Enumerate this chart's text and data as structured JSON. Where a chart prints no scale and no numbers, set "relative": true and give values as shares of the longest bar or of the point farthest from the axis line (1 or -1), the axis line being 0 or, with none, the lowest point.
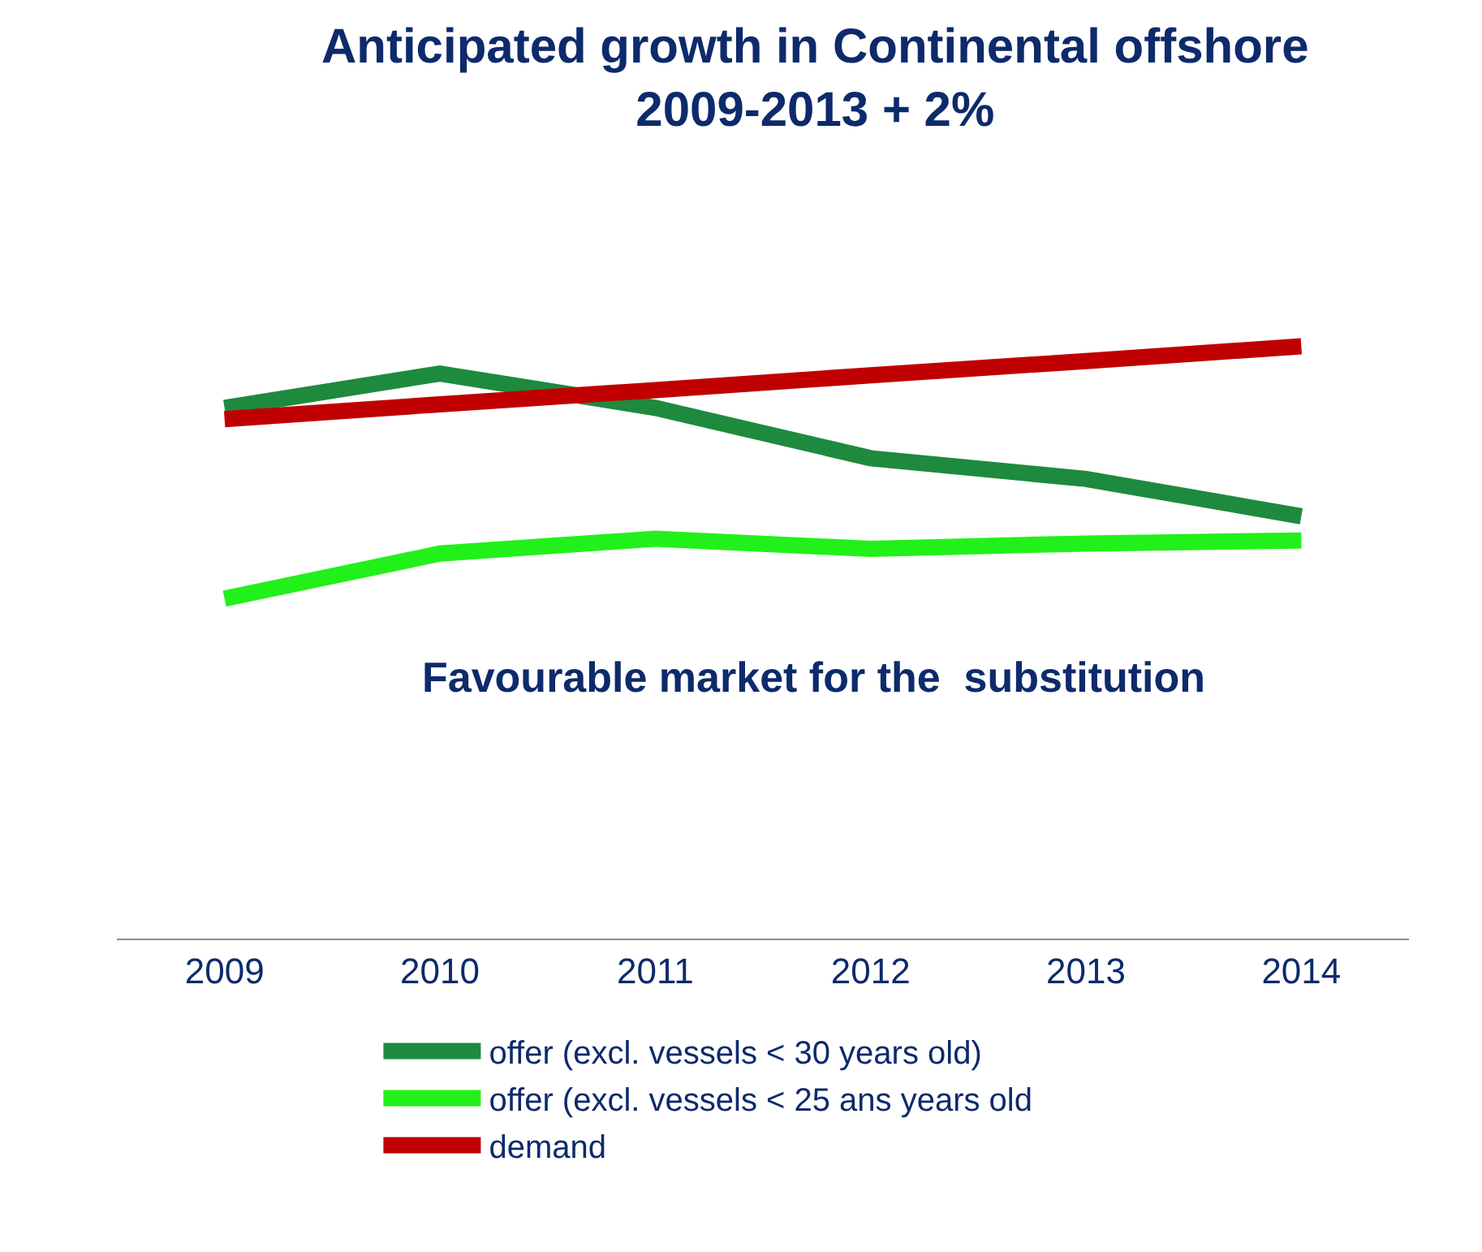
{
  "chart_data": {
    "type": "line",
    "title": "Anticipated growth in Continental offshore\n2009-2013 + 2%",
    "relative": true,
    "categories": [
      "2009",
      "2010",
      "2011",
      "2012",
      "2013",
      "2014"
    ],
    "series": [
      {
        "name": "offer (excl. vessels < 30 years old)",
        "color": "#1e8a3e",
        "values": [
          0.896,
          0.954,
          0.896,
          0.811,
          0.776,
          0.713
        ]
      },
      {
        "name": "offer (excl. vessels < 25 ans years old",
        "color": "#22f01a",
        "values": [
          0.574,
          0.65,
          0.675,
          0.658,
          0.667,
          0.672
        ]
      },
      {
        "name": "demand",
        "color": "#c00000",
        "values": [
          0.877,
          0.902,
          0.926,
          0.951,
          0.975,
          1.0
        ]
      }
    ],
    "annotations": [
      "Favourable market for the  substitution"
    ],
    "legend": "bottom",
    "grid": false,
    "marker": "none",
    "line_style": "solid"
  }
}
